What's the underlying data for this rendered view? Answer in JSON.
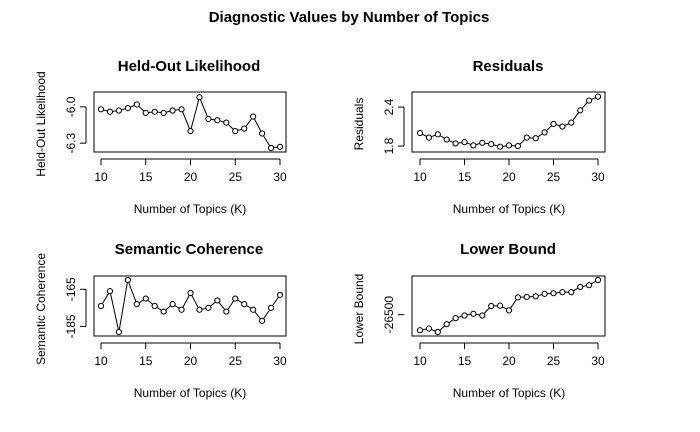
{
  "figure": {
    "title": "Diagnostic Values by Number of Topics"
  },
  "chart_data": [
    {
      "type": "line",
      "title": "Held-Out Likelihood",
      "xlabel": "Number of Topics (K)",
      "ylabel": "Held-Out Likelihood",
      "x": [
        10,
        11,
        12,
        13,
        14,
        15,
        16,
        17,
        18,
        19,
        20,
        21,
        22,
        23,
        24,
        25,
        26,
        27,
        28,
        29,
        30
      ],
      "y": [
        -6.02,
        -6.04,
        -6.03,
        -6.01,
        -5.98,
        -6.05,
        -6.04,
        -6.05,
        -6.03,
        -6.02,
        -6.2,
        -5.92,
        -6.1,
        -6.11,
        -6.13,
        -6.2,
        -6.18,
        -6.08,
        -6.22,
        -6.34,
        -6.33
      ],
      "xlim": [
        10,
        30
      ],
      "ylim": [
        -6.34,
        -5.91
      ],
      "xticks": [
        10,
        15,
        20,
        25,
        30
      ],
      "yticks": [
        -6.3,
        -6.0
      ],
      "ytick_labels": [
        "-6.3",
        "-6.0"
      ]
    },
    {
      "type": "line",
      "title": "Residuals",
      "xlabel": "Number of Topics (K)",
      "ylabel": "Residuals",
      "x": [
        10,
        11,
        12,
        13,
        14,
        15,
        16,
        17,
        18,
        19,
        20,
        21,
        22,
        23,
        24,
        25,
        26,
        27,
        28,
        29,
        30
      ],
      "y": [
        2.0,
        1.93,
        1.98,
        1.9,
        1.84,
        1.86,
        1.81,
        1.85,
        1.83,
        1.79,
        1.81,
        1.8,
        1.93,
        1.92,
        2.01,
        2.14,
        2.1,
        2.16,
        2.35,
        2.5,
        2.56
      ],
      "xlim": [
        10,
        30
      ],
      "ylim": [
        1.77,
        2.57
      ],
      "xticks": [
        10,
        15,
        20,
        25,
        30
      ],
      "yticks": [
        1.8,
        2.4
      ],
      "ytick_labels": [
        "1.8",
        "2.4"
      ]
    },
    {
      "type": "line",
      "title": "Semantic Coherence",
      "xlabel": "Number of Topics (K)",
      "ylabel": "Semantic Coherence",
      "x": [
        10,
        11,
        12,
        13,
        14,
        15,
        16,
        17,
        18,
        19,
        20,
        21,
        22,
        23,
        24,
        25,
        26,
        27,
        28,
        29,
        30
      ],
      "y": [
        -174,
        -166,
        -188,
        -160,
        -173,
        -170,
        -174,
        -177,
        -173,
        -176,
        -167,
        -176,
        -175,
        -171,
        -177,
        -170,
        -173,
        -176,
        -182,
        -175,
        -168
      ],
      "xlim": [
        10,
        30
      ],
      "ylim": [
        -188,
        -160
      ],
      "xticks": [
        10,
        15,
        20,
        25,
        30
      ],
      "yticks": [
        -185,
        -165
      ],
      "ytick_labels": [
        "-185",
        "-165"
      ]
    },
    {
      "type": "line",
      "title": "Lower Bound",
      "xlabel": "Number of Topics (K)",
      "ylabel": "Lower Bound",
      "x": [
        10,
        11,
        12,
        13,
        14,
        15,
        16,
        17,
        18,
        19,
        20,
        21,
        22,
        23,
        24,
        25,
        26,
        27,
        28,
        29,
        30
      ],
      "y": [
        -26590,
        -26580,
        -26600,
        -26555,
        -26520,
        -26505,
        -26495,
        -26505,
        -26450,
        -26448,
        -26475,
        -26400,
        -26398,
        -26394,
        -26380,
        -26376,
        -26370,
        -26370,
        -26340,
        -26330,
        -26300
      ],
      "xlim": [
        10,
        30
      ],
      "ylim": [
        -26600,
        -26300
      ],
      "xticks": [
        10,
        15,
        20,
        25,
        30
      ],
      "yticks": [
        -26500
      ],
      "ytick_labels": [
        "-26500"
      ]
    }
  ]
}
